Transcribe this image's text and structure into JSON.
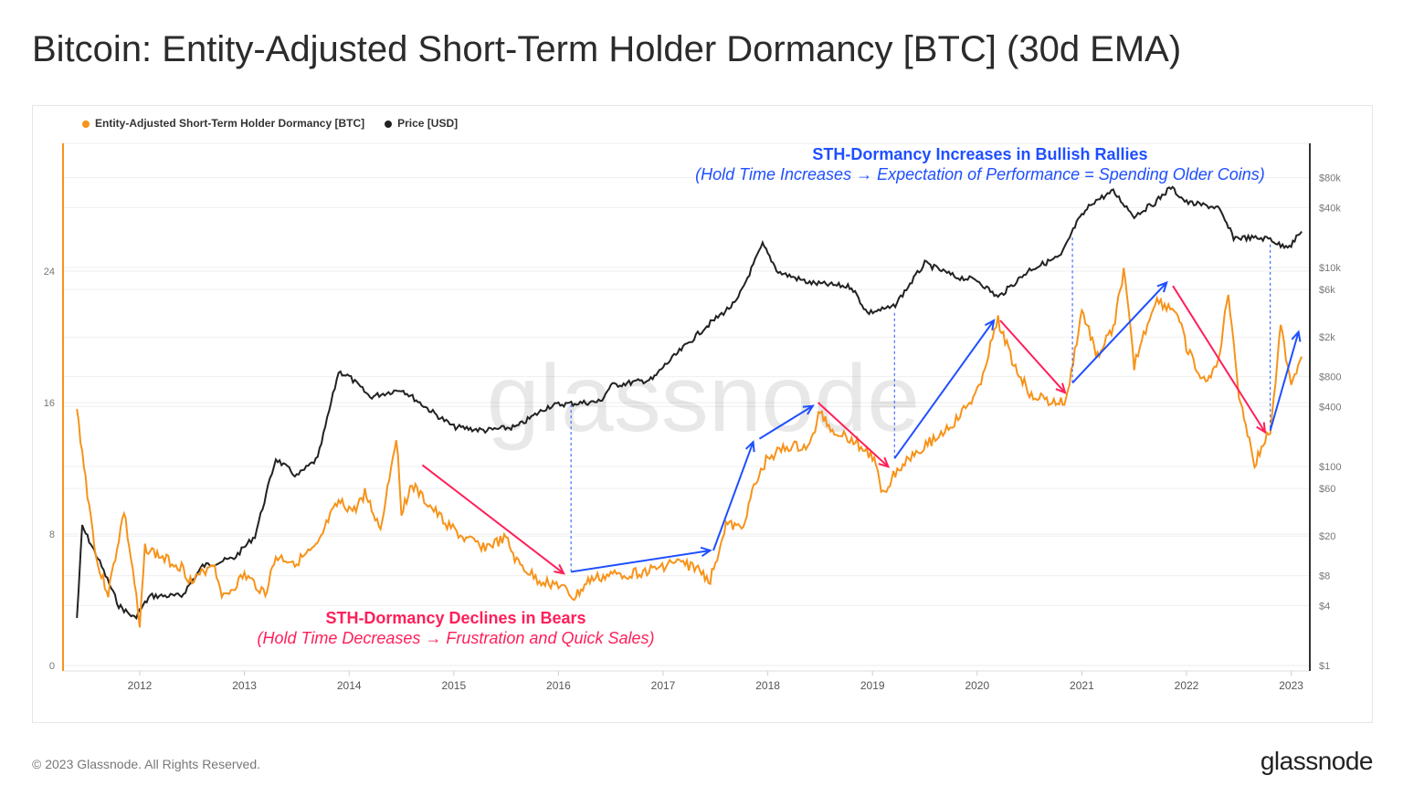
{
  "header": {
    "title": "Bitcoin: Entity-Adjusted Short-Term Holder Dormancy [BTC] (30d EMA)"
  },
  "footer": {
    "copyright": "© 2023 Glassnode. All Rights Reserved.",
    "brand": "glassnode"
  },
  "watermark": "glassnode",
  "colors": {
    "dormancy": "#f7931a",
    "price": "#222222",
    "bull": "#1f4fff",
    "bear": "#ff1f5a"
  },
  "chart_data": {
    "type": "line",
    "title": "Bitcoin: Entity-Adjusted Short-Term Holder Dormancy [BTC] (30d EMA)",
    "legend": [
      {
        "name": "Entity-Adjusted Short-Term Holder Dormancy [BTC]",
        "color": "#f7931a"
      },
      {
        "name": "Price [USD]",
        "color": "#222222"
      }
    ],
    "legend_position": "top-left",
    "grid": true,
    "xlim": [
      2011.35,
      2023.13
    ],
    "x_ticks": [
      "2012",
      "2013",
      "2014",
      "2015",
      "2016",
      "2017",
      "2018",
      "2019",
      "2020",
      "2021",
      "2022",
      "2023"
    ],
    "y_left": {
      "ticks": [
        "0",
        "8",
        "16",
        "24"
      ],
      "range": [
        0,
        32
      ]
    },
    "y_right": {
      "scale": "log",
      "ticks": [
        "$1",
        "$4",
        "$8",
        "$20",
        "$60",
        "$100",
        "$400",
        "$800",
        "$2k",
        "$6k",
        "$10k",
        "$40k",
        "$80k"
      ],
      "tick_values": [
        1,
        4,
        8,
        20,
        60,
        100,
        400,
        800,
        2000,
        6000,
        10000,
        40000,
        80000
      ],
      "range": [
        1,
        200000
      ]
    },
    "series": [
      {
        "name": "Entity-Adjusted Short-Term Holder Dormancy [BTC]",
        "axis": "left",
        "points": [
          [
            2011.4,
            15.5
          ],
          [
            2011.5,
            10.5
          ],
          [
            2011.6,
            6
          ],
          [
            2011.7,
            4.4
          ],
          [
            2011.85,
            9.4
          ],
          [
            2011.95,
            5
          ],
          [
            2012.0,
            2.2
          ],
          [
            2012.05,
            7.2
          ],
          [
            2012.2,
            6.6
          ],
          [
            2012.4,
            6
          ],
          [
            2012.5,
            5
          ],
          [
            2012.7,
            6.3
          ],
          [
            2012.8,
            4.1
          ],
          [
            2013.0,
            5.5
          ],
          [
            2013.2,
            4.4
          ],
          [
            2013.3,
            6.6
          ],
          [
            2013.5,
            6.3
          ],
          [
            2013.7,
            7.2
          ],
          [
            2013.8,
            8.8
          ],
          [
            2013.9,
            9.9
          ],
          [
            2014.05,
            9.4
          ],
          [
            2014.15,
            10.5
          ],
          [
            2014.3,
            8.3
          ],
          [
            2014.45,
            14
          ],
          [
            2014.5,
            9.4
          ],
          [
            2014.6,
            11
          ],
          [
            2014.7,
            10.2
          ],
          [
            2014.9,
            8.8
          ],
          [
            2015.1,
            7.7
          ],
          [
            2015.3,
            7.2
          ],
          [
            2015.5,
            7.7
          ],
          [
            2015.6,
            6.3
          ],
          [
            2015.8,
            5.2
          ],
          [
            2016.0,
            4.9
          ],
          [
            2016.15,
            4.1
          ],
          [
            2016.3,
            5.2
          ],
          [
            2016.5,
            5.5
          ],
          [
            2016.7,
            5.6
          ],
          [
            2016.9,
            5.8
          ],
          [
            2017.1,
            6.3
          ],
          [
            2017.3,
            6
          ],
          [
            2017.45,
            5.2
          ],
          [
            2017.6,
            8.6
          ],
          [
            2017.75,
            8.3
          ],
          [
            2017.85,
            10.5
          ],
          [
            2018.0,
            12.7
          ],
          [
            2018.2,
            13.3
          ],
          [
            2018.4,
            13.3
          ],
          [
            2018.5,
            15.5
          ],
          [
            2018.6,
            14.4
          ],
          [
            2018.8,
            13.8
          ],
          [
            2019.0,
            12.7
          ],
          [
            2019.1,
            10.5
          ],
          [
            2019.2,
            11.6
          ],
          [
            2019.4,
            13
          ],
          [
            2019.6,
            13.8
          ],
          [
            2019.8,
            14.9
          ],
          [
            2020.0,
            16.6
          ],
          [
            2020.2,
            21
          ],
          [
            2020.35,
            18.3
          ],
          [
            2020.5,
            16.6
          ],
          [
            2020.7,
            16
          ],
          [
            2020.85,
            16
          ],
          [
            2021.0,
            21.6
          ],
          [
            2021.15,
            18.8
          ],
          [
            2021.3,
            20.5
          ],
          [
            2021.4,
            24
          ],
          [
            2021.5,
            18.3
          ],
          [
            2021.7,
            22.2
          ],
          [
            2021.9,
            21.6
          ],
          [
            2022.0,
            19.4
          ],
          [
            2022.15,
            17.2
          ],
          [
            2022.3,
            18.3
          ],
          [
            2022.4,
            22.7
          ],
          [
            2022.5,
            16.6
          ],
          [
            2022.65,
            12.2
          ],
          [
            2022.8,
            14.4
          ],
          [
            2022.9,
            20.5
          ],
          [
            2023.0,
            17.2
          ],
          [
            2023.1,
            18.8
          ]
        ]
      },
      {
        "name": "Price [USD]",
        "axis": "right",
        "points": [
          [
            2011.4,
            3
          ],
          [
            2011.45,
            25
          ],
          [
            2011.6,
            12
          ],
          [
            2011.8,
            4
          ],
          [
            2011.95,
            3
          ],
          [
            2012.1,
            5
          ],
          [
            2012.4,
            5
          ],
          [
            2012.6,
            10
          ],
          [
            2012.9,
            12
          ],
          [
            2013.1,
            20
          ],
          [
            2013.3,
            120
          ],
          [
            2013.5,
            80
          ],
          [
            2013.7,
            120
          ],
          [
            2013.9,
            900
          ],
          [
            2014.0,
            800
          ],
          [
            2014.2,
            500
          ],
          [
            2014.5,
            600
          ],
          [
            2014.8,
            350
          ],
          [
            2015.0,
            250
          ],
          [
            2015.3,
            230
          ],
          [
            2015.6,
            250
          ],
          [
            2015.9,
            400
          ],
          [
            2016.0,
            420
          ],
          [
            2016.4,
            450
          ],
          [
            2016.5,
            650
          ],
          [
            2016.9,
            750
          ],
          [
            2017.0,
            1000
          ],
          [
            2017.4,
            2500
          ],
          [
            2017.7,
            4500
          ],
          [
            2017.95,
            17000
          ],
          [
            2018.1,
            9000
          ],
          [
            2018.4,
            7000
          ],
          [
            2018.8,
            6400
          ],
          [
            2018.95,
            3500
          ],
          [
            2019.2,
            4000
          ],
          [
            2019.5,
            11000
          ],
          [
            2019.8,
            8000
          ],
          [
            2020.0,
            7500
          ],
          [
            2020.2,
            5000
          ],
          [
            2020.5,
            9500
          ],
          [
            2020.8,
            13000
          ],
          [
            2020.95,
            28000
          ],
          [
            2021.1,
            45000
          ],
          [
            2021.3,
            58000
          ],
          [
            2021.5,
            33000
          ],
          [
            2021.7,
            45000
          ],
          [
            2021.85,
            64000
          ],
          [
            2022.0,
            45000
          ],
          [
            2022.3,
            40000
          ],
          [
            2022.45,
            20000
          ],
          [
            2022.8,
            19500
          ],
          [
            2022.9,
            16500
          ],
          [
            2023.0,
            17000
          ],
          [
            2023.1,
            23000
          ]
        ]
      }
    ],
    "annotations": {
      "bull_title": "STH-Dormancy Increases in Bullish Rallies",
      "bull_subtitle": "(Hold Time Increases → Expectation of Performance = Spending Older Coins)",
      "bear_title": "STH-Dormancy Declines in Bears",
      "bear_subtitle": "(Hold Time Decreases → Frustration and Quick Sales)",
      "bear_arrows": [
        [
          [
            2014.7,
            12.2
          ],
          [
            2016.05,
            5.6
          ]
        ],
        [
          [
            2018.48,
            16
          ],
          [
            2019.15,
            12.1
          ]
        ],
        [
          [
            2020.22,
            21
          ],
          [
            2020.84,
            16.6
          ]
        ],
        [
          [
            2021.87,
            23.1
          ],
          [
            2022.75,
            14.2
          ]
        ]
      ],
      "bull_arrows": [
        [
          [
            2016.12,
            5.7
          ],
          [
            2017.45,
            7.0
          ]
        ],
        [
          [
            2017.48,
            7.0
          ],
          [
            2017.86,
            13.6
          ]
        ],
        [
          [
            2017.92,
            13.8
          ],
          [
            2018.43,
            15.8
          ]
        ],
        [
          [
            2019.21,
            12.6
          ],
          [
            2020.16,
            21
          ]
        ],
        [
          [
            2020.91,
            17.2
          ],
          [
            2021.81,
            23.3
          ]
        ],
        [
          [
            2022.8,
            14.3
          ],
          [
            2023.07,
            20.3
          ]
        ]
      ],
      "cycle_markers": [
        2016.12,
        2019.21,
        2020.91,
        2022.8
      ]
    }
  }
}
